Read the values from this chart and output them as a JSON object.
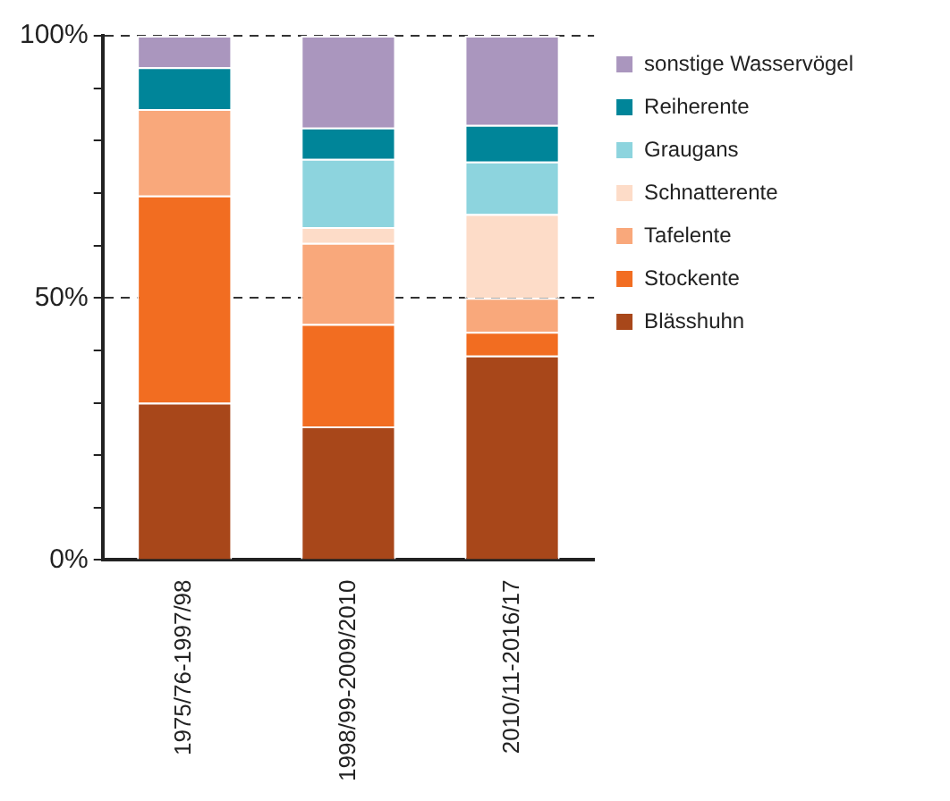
{
  "chart_data": {
    "type": "bar",
    "stacked": true,
    "categories": [
      "1975/76-1997/98",
      "1998/99-2009/2010",
      "2010/11-2016/17"
    ],
    "series": [
      {
        "name": "Blässhuhn",
        "color": "#a8471a",
        "values": [
          30,
          25.5,
          39
        ]
      },
      {
        "name": "Stockente",
        "color": "#f26d21",
        "values": [
          39.5,
          19.5,
          4.5
        ]
      },
      {
        "name": "Tafelente",
        "color": "#f9a87b",
        "values": [
          16.5,
          15.5,
          6.5
        ]
      },
      {
        "name": "Schnatterente",
        "color": "#fddcc8",
        "values": [
          0,
          3,
          16
        ]
      },
      {
        "name": "Graugans",
        "color": "#8dd4de",
        "values": [
          0,
          13,
          10
        ]
      },
      {
        "name": "Reiherente",
        "color": "#008599",
        "values": [
          8,
          6,
          7
        ]
      },
      {
        "name": "sonstige Wasservögel",
        "color": "#aa96be",
        "values": [
          6,
          17.5,
          17
        ]
      }
    ],
    "ylim": [
      0,
      100
    ],
    "yticks": [
      {
        "value": 0,
        "label": "0%"
      },
      {
        "value": 10,
        "label": null
      },
      {
        "value": 20,
        "label": null
      },
      {
        "value": 30,
        "label": null
      },
      {
        "value": 40,
        "label": null
      },
      {
        "value": 50,
        "label": "50%"
      },
      {
        "value": 60,
        "label": null
      },
      {
        "value": 70,
        "label": null
      },
      {
        "value": 80,
        "label": null
      },
      {
        "value": 90,
        "label": null
      },
      {
        "value": 100,
        "label": "100%"
      }
    ],
    "grid": "y",
    "legend": "right"
  }
}
